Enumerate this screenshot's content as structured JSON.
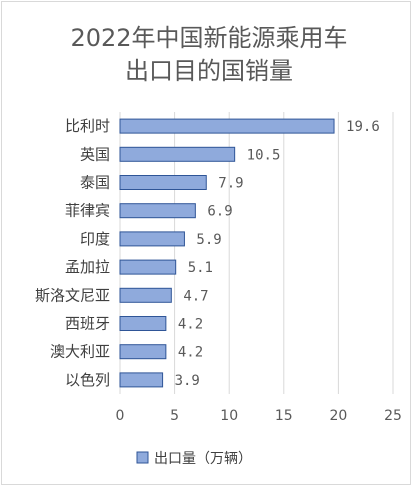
{
  "chart_data": {
    "type": "bar",
    "orientation": "horizontal",
    "title_lines": [
      "2022年中国新能源乘用车",
      "出口目的国销量"
    ],
    "categories": [
      "比利时",
      "英国",
      "泰国",
      "菲律宾",
      "印度",
      "孟加拉",
      "斯洛文尼亚",
      "西班牙",
      "澳大利亚",
      "以色列"
    ],
    "series": [
      {
        "name": "出口量（万辆）",
        "values": [
          19.6,
          10.5,
          7.9,
          6.9,
          5.9,
          5.1,
          4.7,
          4.2,
          4.2,
          3.9
        ],
        "labels": [
          "19.6",
          "10.5",
          "7.9",
          "6.9",
          "5.9",
          "5.1",
          "4.7",
          "4.2",
          "4.2",
          "3.9"
        ]
      }
    ],
    "xlim": [
      0,
      25
    ],
    "xticks": [
      0,
      5,
      10,
      15,
      20,
      25
    ],
    "grid": "vertical",
    "legend": "bottom",
    "bar_fill": "#8faadc",
    "bar_stroke": "#2f5597",
    "grid_color": "#d9d9d9"
  }
}
